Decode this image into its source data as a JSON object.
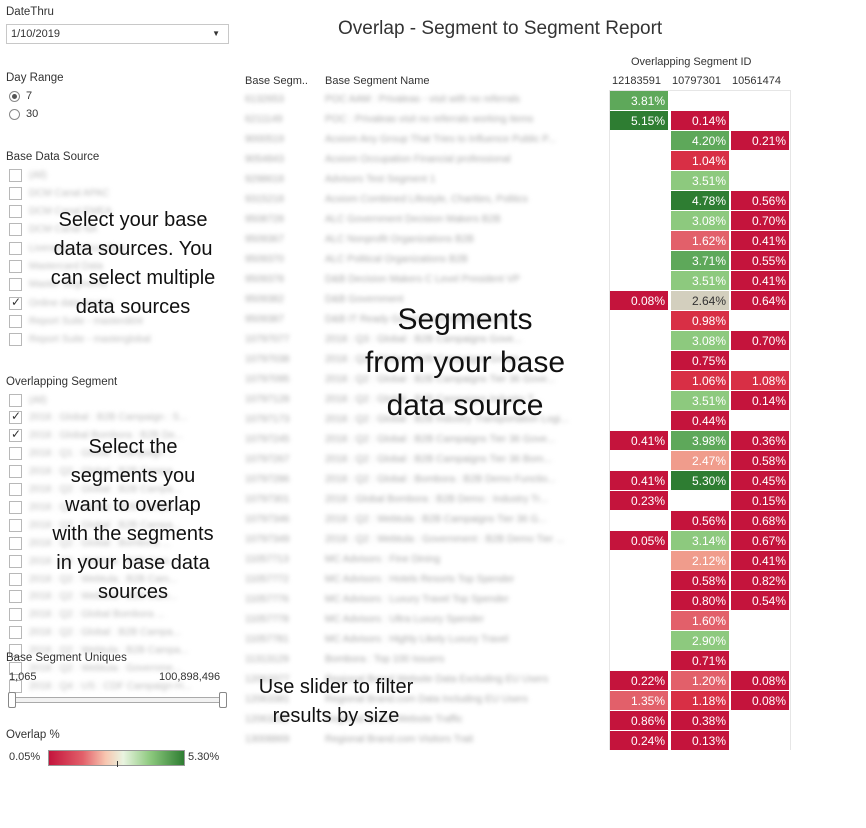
{
  "filters": {
    "date_thru_label": "DateThru",
    "date_thru_value": "1/10/2019",
    "day_range_label": "Day Range",
    "day_range_options": [
      {
        "label": "7",
        "selected": true
      },
      {
        "label": "30",
        "selected": false
      }
    ],
    "base_data_source_label": "Base Data Source",
    "base_data_sources": [
      {
        "label": "(All)",
        "checked": false
      },
      {
        "label": "DCM Canal APAC",
        "checked": false
      },
      {
        "label": "DCM Canal EMEA",
        "checked": false
      },
      {
        "label": "DCM Canal NA",
        "checked": false
      },
      {
        "label": "Liveramp Onboarding",
        "checked": false
      },
      {
        "label": "Mastercard Data",
        "checked": false
      },
      {
        "label": "Master Segments",
        "checked": false
      },
      {
        "label": "Online data source",
        "checked": true
      },
      {
        "label": "Report Suite - masterdi04",
        "checked": false
      },
      {
        "label": "Report Suite - masterglobal",
        "checked": false
      }
    ],
    "overlapping_segment_label": "Overlapping Segment",
    "overlapping_segments": [
      {
        "label": "(All)",
        "checked": false
      },
      {
        "label": "2018 : Global : B2B Campaign : S...",
        "checked": true
      },
      {
        "label": "2018 : Global Bombora : B2B De...",
        "checked": true
      },
      {
        "label": "2018 : Q1 : Global : Campaign ...",
        "checked": false
      },
      {
        "label": "2018 : Q2 : Global : B2B Campa...",
        "checked": false
      },
      {
        "label": "2018 : Q2 : Global : B2B Campa...",
        "checked": false
      },
      {
        "label": "2018 : Q2 : Global : B2B Campa...",
        "checked": false
      },
      {
        "label": "2018 : Q2 : Global : B2B Campa...",
        "checked": false
      },
      {
        "label": "2018 : Q2 : Global : Bombora ...",
        "checked": false
      },
      {
        "label": "2018 : Q2 : Webtula : B2B Cam...",
        "checked": false
      },
      {
        "label": "2018 : Q2 : Webtula : B2B Cam...",
        "checked": false
      },
      {
        "label": "2018 : Q2 : Webtula : B2B Cam...",
        "checked": false
      },
      {
        "label": "2018 : Q2 : Global Bombora ...",
        "checked": false
      },
      {
        "label": "2018 : Q2 : Global : B2B Campa...",
        "checked": false
      },
      {
        "label": "2018 : Q2 : Webtula : B2B Campa...",
        "checked": false
      },
      {
        "label": "2018 : Q2 : Webtula : Governme...",
        "checked": false
      },
      {
        "label": "2018 : Q4 : US : CDF Campaign-H...",
        "checked": false
      }
    ],
    "uniques_label": "Base Segment Uniques",
    "uniques_min": "1,065",
    "uniques_max": "100,898,496",
    "overlap_label": "Overlap %",
    "overlap_min": "0.05%",
    "overlap_max": "5.30%"
  },
  "annotations": {
    "base_sources_tip": [
      "Select your base",
      "data sources. You",
      "can select multiple",
      "data sources"
    ],
    "overlap_tip": [
      "Select the",
      "segments you",
      "want to overlap",
      "with the segments",
      "in your base data",
      "sources"
    ],
    "segments_tip": [
      "Segments",
      "from your base",
      "data source"
    ],
    "slider_tip": [
      "Use slider to filter",
      "results by size"
    ]
  },
  "report": {
    "title": "Overlap - Segment to Segment Report",
    "column_group_label": "Overlapping Segment ID",
    "columns": [
      "12183591",
      "10797301",
      "10561474"
    ],
    "base_id_header": "Base Segm..",
    "base_name_header": "Base Segment Name",
    "colors": {
      "dark_red": "#c4143c",
      "red": "#d82f45",
      "mid_red": "#e2606a",
      "light_red": "#f09c8c",
      "neutral": "#d3cfbe",
      "light_green": "#8dc97e",
      "mid_green": "#5ea85a",
      "dark_green": "#2e7d32"
    },
    "rows": [
      {
        "id": "6132653",
        "name": "POC AAM : Privaleas - visit with no referrals",
        "values": [
          "3.81%",
          "",
          ""
        ]
      },
      {
        "id": "6211149",
        "name": "POC : Privaleas visit no referrals working items",
        "values": [
          "5.15%",
          "0.14%",
          ""
        ]
      },
      {
        "id": "9000519",
        "name": "Acxiom Any Group That Tries to Influence Public P...",
        "values": [
          "",
          "4.20%",
          "0.21%"
        ]
      },
      {
        "id": "9054843",
        "name": "Acxiom Occupation Financial professional",
        "values": [
          "",
          "1.04%",
          ""
        ]
      },
      {
        "id": "9298618",
        "name": "Advisors Test Segment 1",
        "values": [
          "",
          "3.51%",
          ""
        ]
      },
      {
        "id": "9315218",
        "name": "Acxiom Combined Lifestyle, Charities, Politics",
        "values": [
          "",
          "4.78%",
          "0.56%"
        ]
      },
      {
        "id": "9508728",
        "name": "ALC Government Decision Makers B2B",
        "values": [
          "",
          "3.08%",
          "0.70%"
        ]
      },
      {
        "id": "9509367",
        "name": "ALC Nonprofit Organizations B2B",
        "values": [
          "",
          "1.62%",
          "0.41%"
        ]
      },
      {
        "id": "9509370",
        "name": "ALC Political Organizations B2B",
        "values": [
          "",
          "3.71%",
          "0.55%"
        ]
      },
      {
        "id": "9509378",
        "name": "D&B Decision Makers C Level President VP",
        "values": [
          "",
          "3.51%",
          "0.41%"
        ]
      },
      {
        "id": "9509382",
        "name": "D&B Government",
        "values": [
          "0.08%",
          "2.64%",
          "0.64%"
        ]
      },
      {
        "id": "9509387",
        "name": "D&B IT Ready Government Attendees Inc",
        "values": [
          "",
          "0.98%",
          ""
        ]
      },
      {
        "id": "10797077",
        "name": "2018 : Q3 : Global : B2B Campaigns Gove...",
        "values": [
          "",
          "3.08%",
          "0.70%"
        ]
      },
      {
        "id": "10797038",
        "name": "2018 : Q2 : Global : B2B Campaigns Goven...",
        "values": [
          "",
          "0.75%",
          ""
        ]
      },
      {
        "id": "10797095",
        "name": "2018 : Q2 : Global : B2B Campaigns Tier 36 Gove...",
        "values": [
          "",
          "1.06%",
          "1.08%"
        ]
      },
      {
        "id": "10797128",
        "name": "2018 : Q2 : Global : B2B Campaigns Industry T...",
        "values": [
          "",
          "3.51%",
          "0.14%"
        ]
      },
      {
        "id": "10797173",
        "name": "2018 : Q2 : Global : B2B Industry Transportation Logi...",
        "values": [
          "",
          "0.44%",
          ""
        ]
      },
      {
        "id": "10797245",
        "name": "2018 : Q2 : Global : B2B Campaigns Tier 36 Gove...",
        "values": [
          "0.41%",
          "3.98%",
          "0.36%"
        ]
      },
      {
        "id": "10797267",
        "name": "2018 : Q2 : Global : B2B Campaigns Tier 36 Bom...",
        "values": [
          "",
          "2.47%",
          "0.58%"
        ]
      },
      {
        "id": "10797286",
        "name": "2018 : Q2 : Global : Bombora : B2B Demo Functio...",
        "values": [
          "0.41%",
          "5.30%",
          "0.45%"
        ]
      },
      {
        "id": "10797301",
        "name": "2018 : Global Bombora : B2B Demo : Industry Tr...",
        "values": [
          "0.23%",
          "",
          "0.15%"
        ]
      },
      {
        "id": "10797346",
        "name": "2018 : Q2 : Webtula : B2B Campaigns Tier 36 G...",
        "values": [
          "",
          "0.56%",
          "0.68%"
        ]
      },
      {
        "id": "10797349",
        "name": "2018 : Q2 : Webtula : Government : B2B Demo Tier ...",
        "values": [
          "0.05%",
          "3.14%",
          "0.67%"
        ]
      },
      {
        "id": "11057713",
        "name": "MC Advisors : Fine Dining",
        "values": [
          "",
          "2.12%",
          "0.41%"
        ]
      },
      {
        "id": "11057772",
        "name": "MC Advisors : Hotels Resorts Top Spender",
        "values": [
          "",
          "0.58%",
          "0.82%"
        ]
      },
      {
        "id": "11057776",
        "name": "MC Advisors : Luxury Travel Top Spender",
        "values": [
          "",
          "0.80%",
          "0.54%"
        ]
      },
      {
        "id": "11057778",
        "name": "MC Advisors : Ultra Luxury Spender",
        "values": [
          "",
          "1.60%",
          ""
        ]
      },
      {
        "id": "11057781",
        "name": "MC Advisors : Highly Likely Luxury Travel",
        "values": [
          "",
          "2.90%",
          ""
        ]
      },
      {
        "id": "11313129",
        "name": "Bombora : Top 100 Issuers",
        "values": [
          "",
          "0.71%",
          ""
        ]
      },
      {
        "id": "12063377",
        "name": "Regional Brand Website Data Excluding EU Users",
        "values": [
          "0.22%",
          "1.20%",
          "0.08%"
        ]
      },
      {
        "id": "12063381",
        "name": "Regional Brand.com Data Including EU Users",
        "values": [
          "1.35%",
          "1.18%",
          "0.08%"
        ]
      },
      {
        "id": "12063382",
        "name": "Regional Brand Website Traffic",
        "values": [
          "0.86%",
          "0.38%",
          ""
        ]
      },
      {
        "id": "13008869",
        "name": "Regional Brand.com Visitors Trait",
        "values": [
          "0.24%",
          "0.13%",
          ""
        ]
      }
    ]
  }
}
